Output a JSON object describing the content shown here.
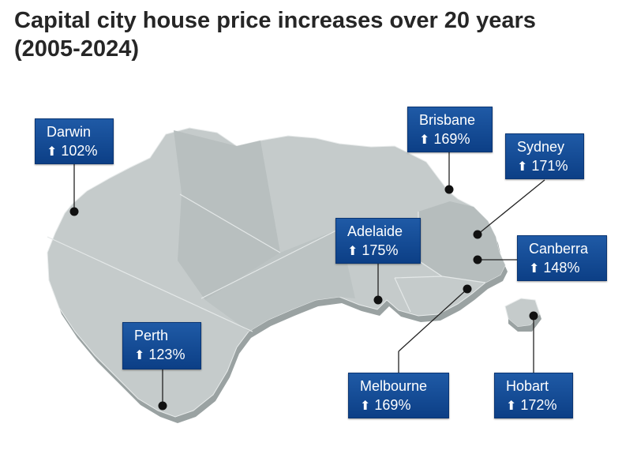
{
  "title": {
    "line1": "Capital city house price increases over 20 years",
    "line2": "(2005-2024)"
  },
  "colors": {
    "land": "#c5cbcb",
    "land_shade": "#b3baba",
    "label_bg": "#1a4f98",
    "label_text": "#ffffff"
  },
  "arrow_icon": "up-arrow-icon",
  "cities": [
    {
      "id": "darwin",
      "name": "Darwin",
      "change": "102%"
    },
    {
      "id": "brisbane",
      "name": "Brisbane",
      "change": "169%"
    },
    {
      "id": "sydney",
      "name": "Sydney",
      "change": "171%"
    },
    {
      "id": "adelaide",
      "name": "Adelaide",
      "change": "175%"
    },
    {
      "id": "canberra",
      "name": "Canberra",
      "change": "148%"
    },
    {
      "id": "perth",
      "name": "Perth",
      "change": "123%"
    },
    {
      "id": "melbourne",
      "name": "Melbourne",
      "change": "169%"
    },
    {
      "id": "hobart",
      "name": "Hobart",
      "change": "172%"
    }
  ]
}
